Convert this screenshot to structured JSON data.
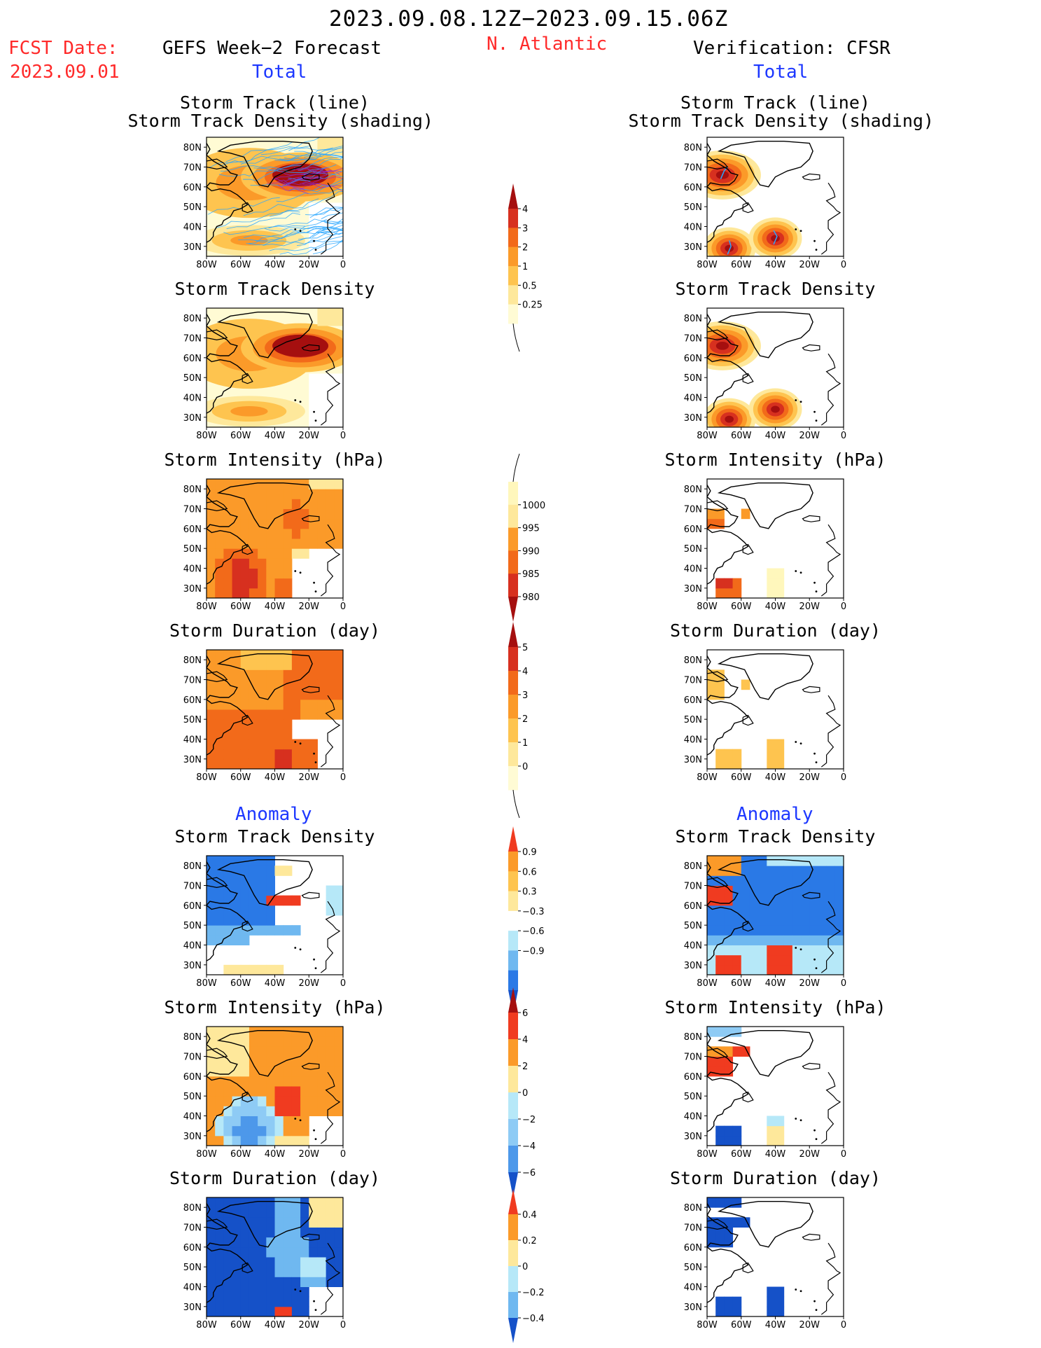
{
  "header": {
    "title": "2023.09.08.12Z−2023.09.15.06Z",
    "fcst_label": "FCST Date:",
    "fcst_date": "2023.09.01",
    "left_heading": "GEFS Week−2 Forecast",
    "region": "N. Atlantic",
    "right_heading": "Verification: CFSR",
    "left_total": "Total",
    "right_total": "Total",
    "left_anomaly": "Anomaly",
    "right_anomaly": "Anomaly"
  },
  "colors": {
    "text_red": "#ff2a2a",
    "text_blue": "#1c37ff",
    "track_line": "#2aa7ff"
  },
  "axis": {
    "x_ticks": [
      "80W",
      "60W",
      "40W",
      "20W",
      "0"
    ],
    "y_ticks": [
      "80N",
      "70N",
      "60N",
      "50N",
      "40N",
      "30N"
    ]
  },
  "chart_data": [
    {
      "type": "heatmap",
      "id": "fcst-track",
      "side": "forecast",
      "section": "total",
      "title_lines": [
        "Storm Track (line)",
        "Storm Track Density (shading)"
      ],
      "x_range": [
        -80,
        0
      ],
      "y_range": [
        25,
        85
      ],
      "overlay": "storm tracks (line)",
      "colorbar": "density"
    },
    {
      "type": "heatmap",
      "id": "fcst-density",
      "side": "forecast",
      "section": "total",
      "title_lines": [
        "Storm Track Density"
      ],
      "x_range": [
        -80,
        0
      ],
      "y_range": [
        25,
        85
      ],
      "colorbar": "density"
    },
    {
      "type": "heatmap",
      "id": "fcst-intensity",
      "side": "forecast",
      "section": "total",
      "title_lines": [
        "Storm Intensity (hPa)"
      ],
      "x_range": [
        -80,
        0
      ],
      "y_range": [
        25,
        85
      ],
      "colorbar": "intensity"
    },
    {
      "type": "heatmap",
      "id": "fcst-duration",
      "side": "forecast",
      "section": "total",
      "title_lines": [
        "Storm Duration (day)"
      ],
      "x_range": [
        -80,
        0
      ],
      "y_range": [
        25,
        85
      ],
      "colorbar": "duration"
    },
    {
      "type": "heatmap",
      "id": "fcst-density-anom",
      "side": "forecast",
      "section": "anomaly",
      "title_lines": [
        "Storm Track Density"
      ],
      "x_range": [
        -80,
        0
      ],
      "y_range": [
        25,
        85
      ],
      "colorbar": "density_anom"
    },
    {
      "type": "heatmap",
      "id": "fcst-intensity-anom",
      "side": "forecast",
      "section": "anomaly",
      "title_lines": [
        "Storm Intensity (hPa)"
      ],
      "x_range": [
        -80,
        0
      ],
      "y_range": [
        25,
        85
      ],
      "colorbar": "intensity_anom"
    },
    {
      "type": "heatmap",
      "id": "fcst-duration-anom",
      "side": "forecast",
      "section": "anomaly",
      "title_lines": [
        "Storm Duration (day)"
      ],
      "x_range": [
        -80,
        0
      ],
      "y_range": [
        25,
        85
      ],
      "colorbar": "duration_anom"
    },
    {
      "type": "heatmap",
      "id": "ver-track",
      "side": "verification",
      "section": "total",
      "title_lines": [
        "Storm Track (line)",
        "Storm Track Density (shading)"
      ],
      "x_range": [
        -80,
        0
      ],
      "y_range": [
        25,
        85
      ],
      "overlay": "storm tracks (line)",
      "colorbar": "density"
    },
    {
      "type": "heatmap",
      "id": "ver-density",
      "side": "verification",
      "section": "total",
      "title_lines": [
        "Storm Track Density"
      ],
      "x_range": [
        -80,
        0
      ],
      "y_range": [
        25,
        85
      ],
      "colorbar": "density"
    },
    {
      "type": "heatmap",
      "id": "ver-intensity",
      "side": "verification",
      "section": "total",
      "title_lines": [
        "Storm Intensity (hPa)"
      ],
      "x_range": [
        -80,
        0
      ],
      "y_range": [
        25,
        85
      ],
      "colorbar": "intensity"
    },
    {
      "type": "heatmap",
      "id": "ver-duration",
      "side": "verification",
      "section": "total",
      "title_lines": [
        "Storm Duration (day)"
      ],
      "x_range": [
        -80,
        0
      ],
      "y_range": [
        25,
        85
      ],
      "colorbar": "duration"
    },
    {
      "type": "heatmap",
      "id": "ver-density-anom",
      "side": "verification",
      "section": "anomaly",
      "title_lines": [
        "Storm Track Density"
      ],
      "x_range": [
        -80,
        0
      ],
      "y_range": [
        25,
        85
      ],
      "colorbar": "density_anom"
    },
    {
      "type": "heatmap",
      "id": "ver-intensity-anom",
      "side": "verification",
      "section": "anomaly",
      "title_lines": [
        "Storm Intensity (hPa)"
      ],
      "x_range": [
        -80,
        0
      ],
      "y_range": [
        25,
        85
      ],
      "colorbar": "intensity_anom"
    },
    {
      "type": "heatmap",
      "id": "ver-duration-anom",
      "side": "verification",
      "section": "anomaly",
      "title_lines": [
        "Storm Duration (day)"
      ],
      "x_range": [
        -80,
        0
      ],
      "y_range": [
        25,
        85
      ],
      "colorbar": "duration_anom"
    }
  ],
  "colorbars": {
    "density": {
      "labels": [
        "4",
        "3",
        "2",
        "1",
        "0.5",
        "0.25"
      ],
      "colors": [
        "#a50f0f",
        "#d7301f",
        "#f26a1a",
        "#fb9a29",
        "#fec44f",
        "#fee89b",
        "#fffbd4"
      ],
      "tail": "bottom"
    },
    "intensity": {
      "labels": [
        "1000",
        "995",
        "990",
        "985",
        "980"
      ],
      "colors": [
        "#fff7bc",
        "#fee89b",
        "#fb9a29",
        "#f26a1a",
        "#d7301f",
        "#a50f0f"
      ],
      "tail": "top"
    },
    "duration": {
      "labels": [
        "5",
        "4",
        "3",
        "2",
        "1",
        "0"
      ],
      "colors": [
        "#a50f0f",
        "#d7301f",
        "#f26a1a",
        "#fb9a29",
        "#fec44f",
        "#fee89b",
        "#fffbd4"
      ],
      "tail": "bottom"
    },
    "density_anom": {
      "labels": [
        "0.9",
        "0.6",
        "0.3",
        "−0.3",
        "−0.6",
        "−0.9"
      ],
      "colors": [
        "#f03b20",
        "#fb9a29",
        "#fec44f",
        "#fee89b",
        "#ffffff",
        "#b6e8f8",
        "#6fb8f0",
        "#2a79e6",
        "#1551c8"
      ]
    },
    "intensity_anom": {
      "labels": [
        "6",
        "4",
        "2",
        "0",
        "−2",
        "−4",
        "−6"
      ],
      "colors": [
        "#a50f0f",
        "#f03b20",
        "#fb9a29",
        "#fee89b",
        "#b6e8f8",
        "#8ecbf5",
        "#4d98ea",
        "#1551c8"
      ]
    },
    "duration_anom": {
      "labels": [
        "0.4",
        "0.2",
        "0",
        "−0.2",
        "−0.4"
      ],
      "colors": [
        "#f03b20",
        "#fb9a29",
        "#fee89b",
        "#b6e8f8",
        "#6fb8f0",
        "#1551c8"
      ]
    }
  }
}
